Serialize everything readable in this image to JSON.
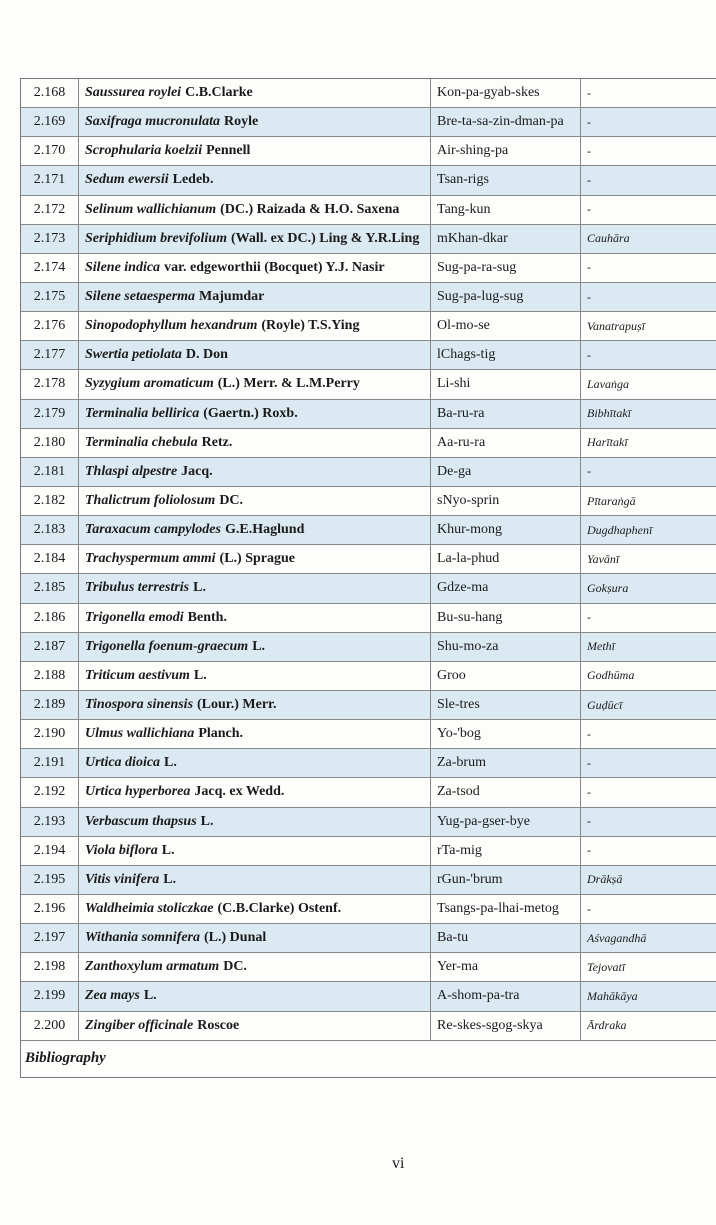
{
  "table": {
    "rows": [
      [
        "2.168",
        "Saussurea roylei",
        "C.B.Clarke",
        "Kon-pa-gyab-skes",
        "-"
      ],
      [
        "2.169",
        "Saxifraga mucronulata",
        "Royle",
        "Bre-ta-sa-zin-dman-pa",
        "-"
      ],
      [
        "2.170",
        "Scrophularia koelzii",
        "Pennell",
        "Air-shing-pa",
        "-"
      ],
      [
        "2.171",
        "Sedum ewersii",
        "Ledeb.",
        "Tsan-rigs",
        "-"
      ],
      [
        "2.172",
        "Selinum wallichianum",
        "(DC.) Raizada & H.O. Saxena",
        "Tang-kun",
        "-"
      ],
      [
        "2.173",
        "Seriphidium brevifolium",
        "(Wall. ex DC.) Ling & Y.R.Ling",
        "mKhan-dkar",
        "Cauhāra"
      ],
      [
        "2.174",
        "Silene indica",
        "var. edgeworthii (Bocquet) Y.J. Nasir",
        "Sug-pa-ra-sug",
        "-"
      ],
      [
        "2.175",
        "Silene setaesperma",
        "Majumdar",
        "Sug-pa-lug-sug",
        "-"
      ],
      [
        "2.176",
        "Sinopodophyllum hexandrum",
        "(Royle) T.S.Ying",
        "Ol-mo-se",
        "Vanatrapuṣī"
      ],
      [
        "2.177",
        "Swertia petiolata",
        "D. Don",
        "lChags-tig",
        "-"
      ],
      [
        "2.178",
        "Syzygium aromaticum",
        "(L.) Merr. & L.M.Perry",
        "Li-shi",
        "Lavaṅga"
      ],
      [
        "2.179",
        "Terminalia bellirica",
        "(Gaertn.) Roxb.",
        "Ba-ru-ra",
        "Bibhītakī"
      ],
      [
        "2.180",
        "Terminalia chebula",
        "Retz.",
        "Aa-ru-ra",
        "Harītakī"
      ],
      [
        "2.181",
        "Thlaspi alpestre",
        "Jacq.",
        "De-ga",
        "-"
      ],
      [
        "2.182",
        "Thalictrum foliolosum",
        "DC.",
        "sNyo-sprin",
        "Pītaraṅgā"
      ],
      [
        "2.183",
        "Taraxacum campylodes",
        "G.E.Haglund",
        "Khur-mong",
        "Dugdhaphenī"
      ],
      [
        "2.184",
        "Trachyspermum ammi",
        "(L.) Sprague",
        "La-la-phud",
        "Yavānī"
      ],
      [
        "2.185",
        "Tribulus terrestris",
        "L.",
        "Gdze-ma",
        "Gokṣura"
      ],
      [
        "2.186",
        "Trigonella emodi",
        "Benth.",
        "Bu-su-hang",
        "-"
      ],
      [
        "2.187",
        "Trigonella foenum-graecum",
        "L.",
        "Shu-mo-za",
        "Methī"
      ],
      [
        "2.188",
        "Triticum aestivum",
        "L.",
        "Groo",
        "Godhūma"
      ],
      [
        "2.189",
        "Tinospora sinensis",
        "(Lour.) Merr.",
        "Sle-tres",
        "Guḍūcī"
      ],
      [
        "2.190",
        "Ulmus wallichiana",
        "Planch.",
        "Yo-'bog",
        "-"
      ],
      [
        "2.191",
        "Urtica dioica",
        "L.",
        "Za-brum",
        "-"
      ],
      [
        "2.192",
        "Urtica hyperborea",
        "Jacq. ex Wedd.",
        "Za-tsod",
        "-"
      ],
      [
        "2.193",
        "Verbascum thapsus",
        "L.",
        "Yug-pa-gser-bye",
        "-"
      ],
      [
        "2.194",
        "Viola biflora",
        "L.",
        "rTa-mig",
        "-"
      ],
      [
        "2.195",
        "Vitis vinifera",
        "L.",
        "rGun-'brum",
        "Drākṣā"
      ],
      [
        "2.196",
        "Waldheimia stoliczkae",
        "(C.B.Clarke) Ostenf.",
        "Tsangs-pa-lhai-metog",
        "-"
      ],
      [
        "2.197",
        "Withania somnifera",
        "(L.) Dunal",
        "Ba-tu",
        "Aśvagandhā"
      ],
      [
        "2.198",
        "Zanthoxylum armatum",
        "DC.",
        "Yer-ma",
        "Tejovatī"
      ],
      [
        "2.199",
        "Zea mays",
        "L.",
        "A-shom-pa-tra",
        "Mahākāya"
      ],
      [
        "2.200",
        "Zingiber officinale",
        "Roscoe",
        "Re-skes-sgog-skya",
        "Ārdraka"
      ]
    ],
    "bibliography": "Bibliography"
  },
  "footer": {
    "page_number": "vi"
  }
}
